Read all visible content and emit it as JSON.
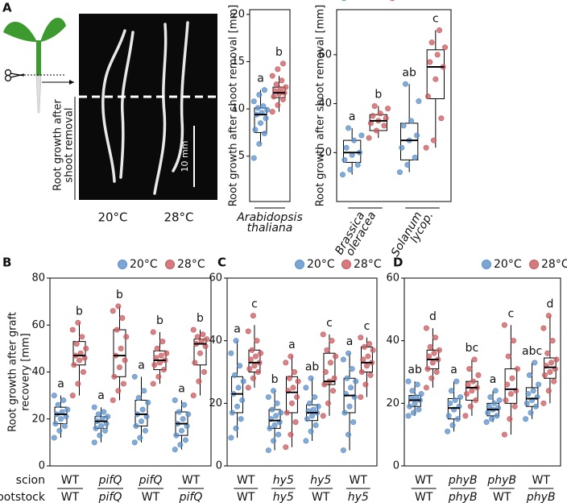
{
  "panel_labels": [
    "A",
    "B",
    "C",
    "D"
  ],
  "photo": {
    "temperatures": [
      "20°C",
      "28°C"
    ],
    "scale_bar": "10 mm",
    "ylabel": [
      "Root growth after",
      "shoot removal"
    ]
  },
  "chart_data": [
    {
      "type": "box",
      "ylabel": [
        "Root growth after shoot removal [mm]"
      ],
      "ylim": [
        0.2,
        20.5
      ],
      "yticks": [
        5,
        10,
        15,
        20
      ],
      "legend": false,
      "category_layout": "stacked",
      "categories": [
        [
          {
            "text": "Arabidopsis",
            "italic": true
          },
          {
            "text": "thaliana",
            "italic": true
          }
        ]
      ],
      "series": [
        {
          "name": "20°C",
          "color": "#5b8fc8",
          "boxes": [
            {
              "whislo": 6.3,
              "q1": 7.5,
              "med": 9.4,
              "q3": 10.1,
              "whishi": 12.0,
              "letter": "a",
              "points": [
                4.8,
                6.3,
                7.4,
                7.8,
                8.5,
                9.0,
                9.4,
                9.6,
                9.9,
                10.1,
                10.3,
                10.8,
                11.5,
                12.0
              ]
            }
          ]
        },
        {
          "name": "28°C",
          "color": "#c85a5e",
          "boxes": [
            {
              "whislo": 9.7,
              "q1": 11.2,
              "med": 11.7,
              "q3": 12.3,
              "whishi": 13.5,
              "letter": "b",
              "points": [
                9.7,
                10.4,
                11.0,
                11.3,
                11.6,
                11.7,
                11.9,
                12.1,
                12.3,
                12.6,
                13.0,
                13.5,
                14.2,
                14.8
              ]
            }
          ]
        }
      ]
    },
    {
      "type": "box",
      "ylabel": [
        "Root growth after shoot removal [mm]"
      ],
      "ylim": [
        0,
        78.4
      ],
      "yticks": [
        20,
        40,
        60
      ],
      "legend": true,
      "category_layout": "rotated",
      "categories": [
        [
          {
            "text": "Brassica",
            "italic": true
          },
          {
            "text": "oleracea",
            "italic": true
          }
        ],
        [
          {
            "text": "Solanum",
            "italic": true
          },
          {
            "text": "lycop.",
            "italic": true
          }
        ]
      ],
      "series": [
        {
          "name": "20°C",
          "color": "#5b8fc8",
          "boxes": [
            {
              "whislo": 11,
              "q1": 16,
              "med": 20,
              "q3": 25,
              "whishi": 30,
              "letter": "a",
              "points": [
                11,
                13,
                15,
                17,
                19,
                20,
                22,
                25,
                27,
                30
              ]
            },
            {
              "whislo": 12,
              "q1": 17,
              "med": 25,
              "q3": 32,
              "whishi": 48,
              "letter": "ab",
              "points": [
                12,
                15,
                18,
                22,
                25,
                27,
                31,
                33,
                41,
                48
              ]
            }
          ]
        },
        {
          "name": "28°C",
          "color": "#c85a5e",
          "boxes": [
            {
              "whislo": 26,
              "q1": 29,
              "med": 33,
              "q3": 35.5,
              "whishi": 39,
              "letter": "b",
              "points": [
                26,
                29,
                31,
                32,
                33,
                34,
                35,
                36,
                38,
                39
              ]
            },
            {
              "whislo": 22,
              "q1": 42,
              "med": 55,
              "q3": 62,
              "whishi": 70,
              "letter": "c",
              "points": [
                22,
                25,
                34,
                43,
                50,
                55,
                57,
                60,
                63,
                65,
                70
              ]
            }
          ]
        }
      ]
    },
    {
      "type": "box",
      "ylabel": [
        "Root growth after graft",
        "recovery [mm]"
      ],
      "ylim": [
        0,
        80
      ],
      "yticks": [
        0,
        20,
        40,
        60,
        80
      ],
      "legend": true,
      "category_layout": "fraction",
      "row_labels": [
        "scion",
        "rootstock"
      ],
      "categories": [
        [
          {
            "text": "WT",
            "italic": false
          },
          {
            "text": "WT",
            "italic": false
          }
        ],
        [
          {
            "text": "pifQ",
            "italic": true
          },
          {
            "text": "pifQ",
            "italic": true
          }
        ],
        [
          {
            "text": "pifQ",
            "italic": true
          },
          {
            "text": "WT",
            "italic": false
          }
        ],
        [
          {
            "text": "WT",
            "italic": false
          },
          {
            "text": "pifQ",
            "italic": true
          }
        ]
      ],
      "series": [
        {
          "name": "20°C",
          "color": "#5b8fc8",
          "boxes": [
            {
              "whislo": 12,
              "q1": 18,
              "med": 22,
              "q3": 25,
              "whishi": 30,
              "letter": "a",
              "points": [
                12,
                15,
                17,
                18,
                20,
                21,
                22,
                23,
                24,
                26,
                28,
                30
              ]
            },
            {
              "whislo": 10,
              "q1": 16,
              "med": 19,
              "q3": 21,
              "whishi": 25,
              "letter": "a",
              "points": [
                10,
                13,
                15,
                16,
                17,
                18,
                19,
                20,
                21,
                22,
                23,
                25
              ]
            },
            {
              "whislo": 10,
              "q1": 17,
              "med": 22,
              "q3": 28,
              "whishi": 38,
              "letter": "a",
              "points": [
                10,
                12,
                15,
                17,
                19,
                21,
                22,
                24,
                27,
                29,
                32,
                38
              ]
            },
            {
              "whislo": 7,
              "q1": 13,
              "med": 18,
              "q3": 23,
              "whishi": 28,
              "letter": "a",
              "points": [
                7,
                9,
                11,
                13,
                15,
                17,
                18,
                20,
                22,
                23,
                26,
                28
              ]
            }
          ]
        },
        {
          "name": "28°C",
          "color": "#c85a5e",
          "boxes": [
            {
              "whislo": 30,
              "q1": 43,
              "med": 47,
              "q3": 53,
              "whishi": 61,
              "letter": "b",
              "points": [
                30,
                35,
                40,
                43,
                45,
                46,
                47,
                48,
                50,
                52,
                55,
                58,
                61
              ]
            },
            {
              "whislo": 28,
              "q1": 38,
              "med": 47,
              "q3": 58,
              "whishi": 68,
              "letter": "b",
              "points": [
                28,
                32,
                35,
                38,
                42,
                45,
                47,
                50,
                55,
                58,
                63,
                66,
                68
              ]
            },
            {
              "whislo": 35,
              "q1": 41,
              "med": 45,
              "q3": 49,
              "whishi": 57,
              "letter": "b",
              "points": [
                35,
                38,
                41,
                43,
                44,
                45,
                46,
                47,
                48,
                50,
                53,
                57
              ]
            },
            {
              "whislo": 30,
              "q1": 43,
              "med": 52,
              "q3": 54,
              "whishi": 58,
              "letter": "b",
              "points": [
                30,
                36,
                40,
                44,
                48,
                51,
                52,
                53,
                54,
                55,
                56,
                58
              ]
            }
          ]
        }
      ]
    },
    {
      "type": "box",
      "ylim": [
        0,
        60
      ],
      "yticks": [
        0,
        20,
        40,
        60
      ],
      "legend": true,
      "category_layout": "fraction",
      "categories": [
        [
          {
            "text": "WT",
            "italic": false
          },
          {
            "text": "WT",
            "italic": false
          }
        ],
        [
          {
            "text": "hy5",
            "italic": true
          },
          {
            "text": "hy5",
            "italic": true
          }
        ],
        [
          {
            "text": "hy5",
            "italic": true
          },
          {
            "text": "WT",
            "italic": false
          }
        ],
        [
          {
            "text": "WT",
            "italic": false
          },
          {
            "text": "hy5",
            "italic": true
          }
        ]
      ],
      "series": [
        {
          "name": "20°C",
          "color": "#5b8fc8",
          "boxes": [
            {
              "whislo": 9,
              "q1": 17,
              "med": 23,
              "q3": 28.5,
              "whishi": 40,
              "letter": "a",
              "points": [
                9,
                12,
                15,
                17,
                19,
                21,
                23,
                25,
                27,
                29,
                32,
                36,
                40
              ]
            },
            {
              "whislo": 5,
              "q1": 12,
              "med": 14.5,
              "q3": 18,
              "whishi": 24,
              "letter": "b",
              "points": [
                5,
                8,
                10,
                12,
                13,
                14,
                15,
                16,
                17,
                18,
                20,
                22,
                24
              ]
            },
            {
              "whislo": 8,
              "q1": 14.5,
              "med": 17,
              "q3": 19.5,
              "whishi": 28,
              "letter": "ab",
              "points": [
                8,
                11,
                13,
                15,
                16,
                17,
                17.5,
                18,
                19,
                20,
                22,
                25,
                28
              ]
            },
            {
              "whislo": 5,
              "q1": 17,
              "med": 22.5,
              "q3": 28,
              "whishi": 36,
              "letter": "a",
              "points": [
                5,
                10,
                14,
                17,
                19,
                22,
                23,
                25,
                27,
                28,
                31,
                34,
                36
              ]
            }
          ]
        },
        {
          "name": "28°C",
          "color": "#c85a5e",
          "boxes": [
            {
              "whislo": 25,
              "q1": 30,
              "med": 33,
              "q3": 37,
              "whishi": 45,
              "letter": "c",
              "points": [
                25,
                28,
                30,
                31,
                32,
                33,
                34,
                35,
                36,
                37,
                40,
                43,
                48
              ]
            },
            {
              "whislo": 6,
              "q1": 17,
              "med": 23.5,
              "q3": 28.5,
              "whishi": 35,
              "letter": "a",
              "points": [
                6,
                10,
                14,
                17,
                20,
                22,
                24,
                25,
                27,
                28,
                30,
                33,
                35
              ]
            },
            {
              "whislo": 16,
              "q1": 26,
              "med": 27,
              "q3": 36,
              "whishi": 42,
              "letter": "c",
              "points": [
                16,
                20,
                24,
                26,
                27,
                28,
                30,
                33,
                35,
                37,
                40,
                42
              ]
            },
            {
              "whislo": 22,
              "q1": 30,
              "med": 33,
              "q3": 38,
              "whishi": 41,
              "letter": "c",
              "points": [
                22,
                26,
                29,
                30,
                32,
                33,
                34,
                35,
                37,
                38,
                39,
                41
              ]
            }
          ]
        }
      ]
    },
    {
      "type": "box",
      "ylim": [
        0,
        60
      ],
      "yticks": [
        0,
        20,
        40,
        60
      ],
      "legend": true,
      "category_layout": "fraction",
      "categories": [
        [
          {
            "text": "WT",
            "italic": false
          },
          {
            "text": "WT",
            "italic": false
          }
        ],
        [
          {
            "text": "phyB",
            "italic": true
          },
          {
            "text": "phyB",
            "italic": true
          }
        ],
        [
          {
            "text": "phyB",
            "italic": true
          },
          {
            "text": "WT",
            "italic": false
          }
        ],
        [
          {
            "text": "WT",
            "italic": false
          },
          {
            "text": "phyB",
            "italic": true
          }
        ]
      ],
      "series": [
        {
          "name": "20°C",
          "color": "#5b8fc8",
          "boxes": [
            {
              "whislo": 16,
              "q1": 19,
              "med": 21,
              "q3": 22.5,
              "whishi": 27,
              "letter": "ab",
              "points": [
                16,
                17,
                18,
                19,
                20,
                21,
                21.5,
                22,
                23,
                24,
                26,
                27
              ]
            },
            {
              "whislo": 11,
              "q1": 15,
              "med": 18.5,
              "q3": 21.5,
              "whishi": 27,
              "letter": "a",
              "points": [
                11,
                13,
                15,
                16,
                18,
                19,
                20,
                21,
                22,
                24,
                27
              ]
            },
            {
              "whislo": 14,
              "q1": 16,
              "med": 18,
              "q3": 20,
              "whishi": 24,
              "letter": "a",
              "points": [
                14,
                15,
                16,
                17,
                18,
                18.5,
                19,
                20,
                21,
                22,
                24
              ]
            },
            {
              "whislo": 15,
              "q1": 19,
              "med": 21.5,
              "q3": 25,
              "whishi": 33,
              "letter": "abc",
              "points": [
                15,
                17,
                19,
                20,
                21,
                22,
                23,
                24,
                26,
                29,
                33
              ]
            }
          ]
        },
        {
          "name": "28°C",
          "color": "#c85a5e",
          "boxes": [
            {
              "whislo": 25,
              "q1": 31,
              "med": 34,
              "q3": 37,
              "whishi": 44,
              "letter": "d",
              "points": [
                25,
                28,
                30,
                31,
                33,
                34,
                35,
                36,
                37,
                38,
                41,
                44
              ]
            },
            {
              "whislo": 16,
              "q1": 21,
              "med": 25,
              "q3": 27,
              "whishi": 34,
              "letter": "bc",
              "points": [
                16,
                19,
                21,
                23,
                24,
                25,
                26,
                27,
                29,
                31,
                34
              ]
            },
            {
              "whislo": 10,
              "q1": 20,
              "med": 24.5,
              "q3": 31,
              "whishi": 45,
              "letter": "c",
              "points": [
                10,
                15,
                19,
                21,
                23,
                24,
                26,
                28,
                31,
                35,
                40,
                45
              ]
            },
            {
              "whislo": 20,
              "q1": 28,
              "med": 31.5,
              "q3": 34.5,
              "whishi": 48,
              "letter": "d",
              "points": [
                20,
                24,
                27,
                29,
                30,
                31,
                32,
                33,
                34,
                36,
                40,
                44,
                48
              ]
            }
          ]
        }
      ]
    }
  ]
}
